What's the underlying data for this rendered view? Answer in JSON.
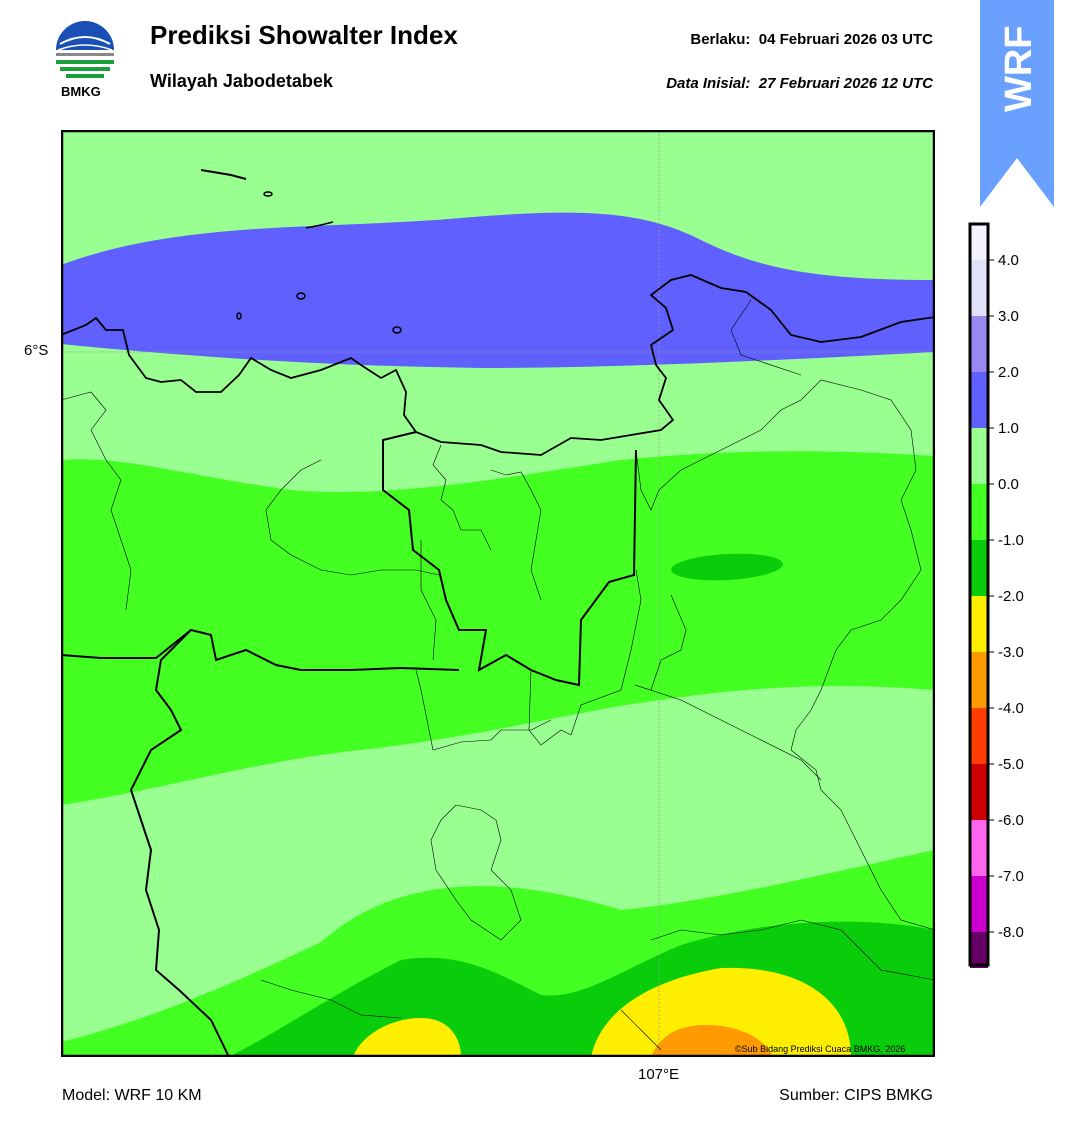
{
  "header": {
    "title": "Prediksi Showalter Index",
    "subtitle": "Wilayah Jabodetabek",
    "valid_label": "Berlaku:",
    "valid_value": "04 Februari 2026 03 UTC",
    "init_label": "Data Inisial:",
    "init_value": "27 Februari 2026 12 UTC"
  },
  "logo": {
    "text": "BMKG",
    "icon": "bmkg-logo"
  },
  "badge": {
    "text": "WRF",
    "color": "#6aa0ff"
  },
  "map": {
    "lat_label": "6°S",
    "lon_label": "107°E",
    "credit": "©Sub Bidang Prediksi Cuaca BMKG, 2026"
  },
  "colorbar": {
    "ticks": [
      "4.0",
      "3.0",
      "2.0",
      "1.0",
      "0.0",
      "-1.0",
      "-2.0",
      "-3.0",
      "-4.0",
      "-5.0",
      "-6.0",
      "-7.0",
      "-8.0"
    ],
    "colors": [
      "#f4f4ff",
      "#e0e0fa",
      "#9a88f0",
      "#6060ff",
      "#99ff90",
      "#44ff22",
      "#09cc0a",
      "#ffee00",
      "#ff9a00",
      "#ff3d00",
      "#cc0000",
      "#ff66ee",
      "#cc00cc",
      "#660066"
    ]
  },
  "footer": {
    "model": "Model: WRF 10 KM",
    "source": "Sumber: CIPS BMKG"
  }
}
